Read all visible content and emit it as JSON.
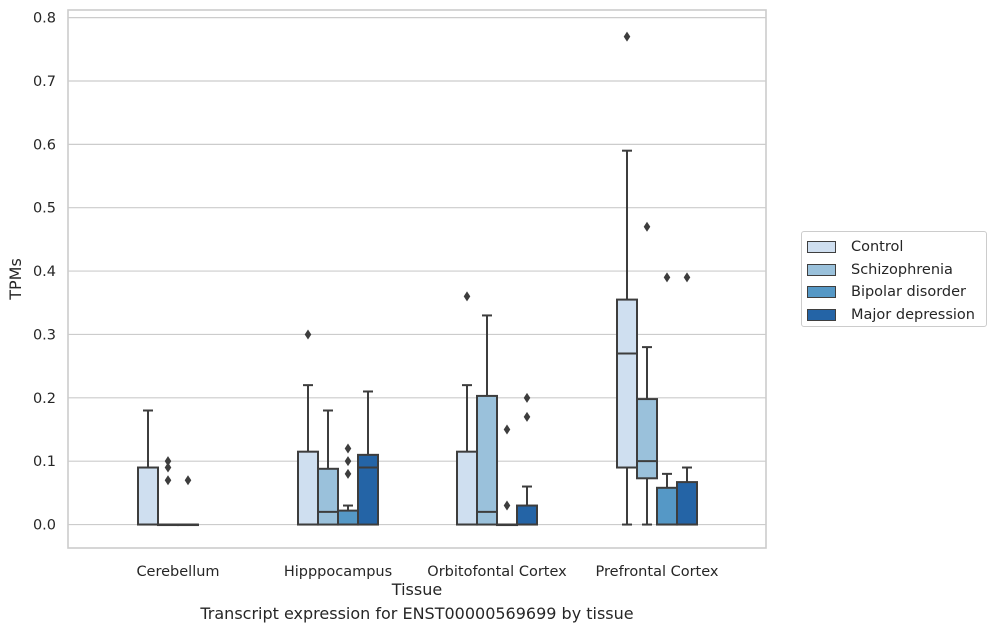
{
  "caption": "Transcript expression for ENST00000569699 by tissue",
  "chart_data": {
    "type": "boxplot",
    "xlabel": "Tissue",
    "ylabel": "TPMs",
    "ylim": [
      -0.037,
      0.812
    ],
    "yticks": [
      0.0,
      0.1,
      0.2,
      0.3,
      0.4,
      0.5,
      0.6,
      0.7,
      0.8
    ],
    "ytick_labels": [
      "0.0",
      "0.1",
      "0.2",
      "0.3",
      "0.4",
      "0.5",
      "0.6",
      "0.7",
      "0.8"
    ],
    "categories": [
      "Cerebellum",
      "Hipppocampus",
      "Orbitofontal Cortex",
      "Prefrontal Cortex"
    ],
    "grid": "horizontal",
    "legend_position": "right",
    "series": [
      {
        "name": "Control",
        "color": "#cfdff0",
        "boxes": [
          {
            "whislo": 0.0,
            "q1": 0.0,
            "med": 0.0,
            "q3": 0.09,
            "whishi": 0.18,
            "fliers": []
          },
          {
            "whislo": 0.0,
            "q1": 0.0,
            "med": 0.0,
            "q3": 0.115,
            "whishi": 0.22,
            "fliers": [
              0.3
            ]
          },
          {
            "whislo": 0.0,
            "q1": 0.0,
            "med": 0.0,
            "q3": 0.115,
            "whishi": 0.22,
            "fliers": [
              0.36
            ]
          },
          {
            "whislo": 0.0,
            "q1": 0.09,
            "med": 0.27,
            "q3": 0.355,
            "whishi": 0.59,
            "fliers": [
              0.77
            ]
          }
        ]
      },
      {
        "name": "Schizophrenia",
        "color": "#9ac1db",
        "boxes": [
          {
            "whislo": 0.0,
            "q1": 0.0,
            "med": 0.0,
            "q3": 0.0,
            "whishi": 0.0,
            "fliers": [
              0.07,
              0.09,
              0.1
            ]
          },
          {
            "whislo": 0.0,
            "q1": 0.0,
            "med": 0.02,
            "q3": 0.088,
            "whishi": 0.18,
            "fliers": []
          },
          {
            "whislo": 0.0,
            "q1": 0.0,
            "med": 0.02,
            "q3": 0.203,
            "whishi": 0.33,
            "fliers": []
          },
          {
            "whislo": 0.0,
            "q1": 0.073,
            "med": 0.1,
            "q3": 0.198,
            "whishi": 0.28,
            "fliers": [
              0.47
            ]
          }
        ]
      },
      {
        "name": "Bipolar disorder",
        "color": "#5598c6",
        "boxes": [
          {
            "whislo": 0.0,
            "q1": 0.0,
            "med": 0.0,
            "q3": 0.0,
            "whishi": 0.0,
            "fliers": [
              0.07
            ]
          },
          {
            "whislo": 0.0,
            "q1": 0.0,
            "med": 0.0,
            "q3": 0.022,
            "whishi": 0.03,
            "fliers": [
              0.08,
              0.1,
              0.12
            ]
          },
          {
            "whislo": 0.0,
            "q1": 0.0,
            "med": 0.0,
            "q3": 0.0,
            "whishi": 0.0,
            "fliers": [
              0.03,
              0.15
            ]
          },
          {
            "whislo": 0.0,
            "q1": 0.0,
            "med": 0.0,
            "q3": 0.058,
            "whishi": 0.08,
            "fliers": [
              0.39
            ]
          }
        ]
      },
      {
        "name": "Major depression",
        "color": "#2464a6",
        "boxes": [
          null,
          {
            "whislo": 0.0,
            "q1": 0.0,
            "med": 0.09,
            "q3": 0.11,
            "whishi": 0.21,
            "fliers": []
          },
          {
            "whislo": 0.0,
            "q1": 0.0,
            "med": 0.0,
            "q3": 0.03,
            "whishi": 0.06,
            "fliers": [
              0.17,
              0.2
            ]
          },
          {
            "whislo": 0.0,
            "q1": 0.0,
            "med": 0.0,
            "q3": 0.067,
            "whishi": 0.09,
            "fliers": [
              0.39
            ]
          }
        ]
      }
    ]
  }
}
